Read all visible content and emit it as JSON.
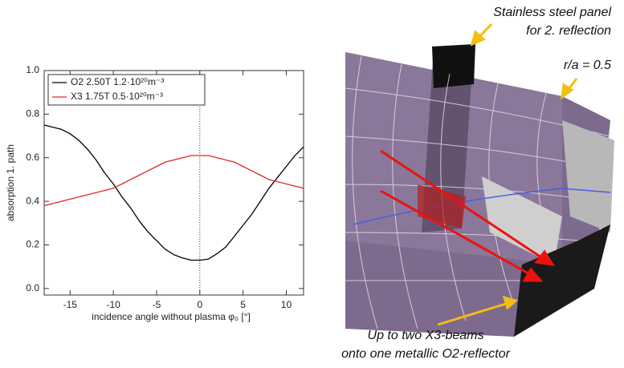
{
  "chart_data": {
    "type": "line",
    "x": [
      -18,
      -17,
      -16,
      -15,
      -14,
      -13,
      -12,
      -11,
      -10,
      -9,
      -8,
      -7,
      -6,
      -5,
      -4,
      -3,
      -2,
      -1,
      0,
      1,
      2,
      3,
      4,
      5,
      6,
      7,
      8,
      9,
      10,
      11,
      12
    ],
    "series": [
      {
        "name": "O2 2.50T 1.2·10²⁰m⁻³",
        "color": "#000000",
        "values": [
          0.75,
          0.74,
          0.73,
          0.71,
          0.68,
          0.64,
          0.59,
          0.53,
          0.48,
          0.42,
          0.37,
          0.31,
          0.26,
          0.22,
          0.18,
          0.155,
          0.14,
          0.13,
          0.13,
          0.135,
          0.16,
          0.19,
          0.24,
          0.29,
          0.34,
          0.4,
          0.46,
          0.51,
          0.56,
          0.61,
          0.65
        ]
      },
      {
        "name": "X3 1.75T 0.5·10²⁰m⁻³",
        "color": "#e0281e",
        "values": [
          0.38,
          0.39,
          0.4,
          0.41,
          0.42,
          0.43,
          0.44,
          0.45,
          0.46,
          0.48,
          0.5,
          0.52,
          0.54,
          0.56,
          0.58,
          0.59,
          0.6,
          0.61,
          0.61,
          0.61,
          0.6,
          0.59,
          0.58,
          0.56,
          0.54,
          0.52,
          0.5,
          0.49,
          0.48,
          0.47,
          0.46
        ]
      }
    ],
    "x_label": "incidence angle without plasma φ₀ [°]",
    "y_label": "absorption 1. path",
    "xlim": [
      -18,
      12
    ],
    "xticks": [
      -15,
      -10,
      -5,
      0,
      5,
      10
    ],
    "ylim": [
      -0.03,
      1.0
    ],
    "yticks": [
      {
        "value": 0,
        "label": "0.0"
      },
      0.2,
      0.4,
      0.6,
      0.8,
      {
        "value": 1,
        "label": "1.0"
      }
    ],
    "vline": 0,
    "legend": "upper-left"
  },
  "illustration": {
    "labels": [
      "Stainless steel panel",
      "for 2. reflection",
      "r/a = 0.5",
      "Up to two X3-beams",
      "onto one metallic O2-reflector"
    ]
  }
}
